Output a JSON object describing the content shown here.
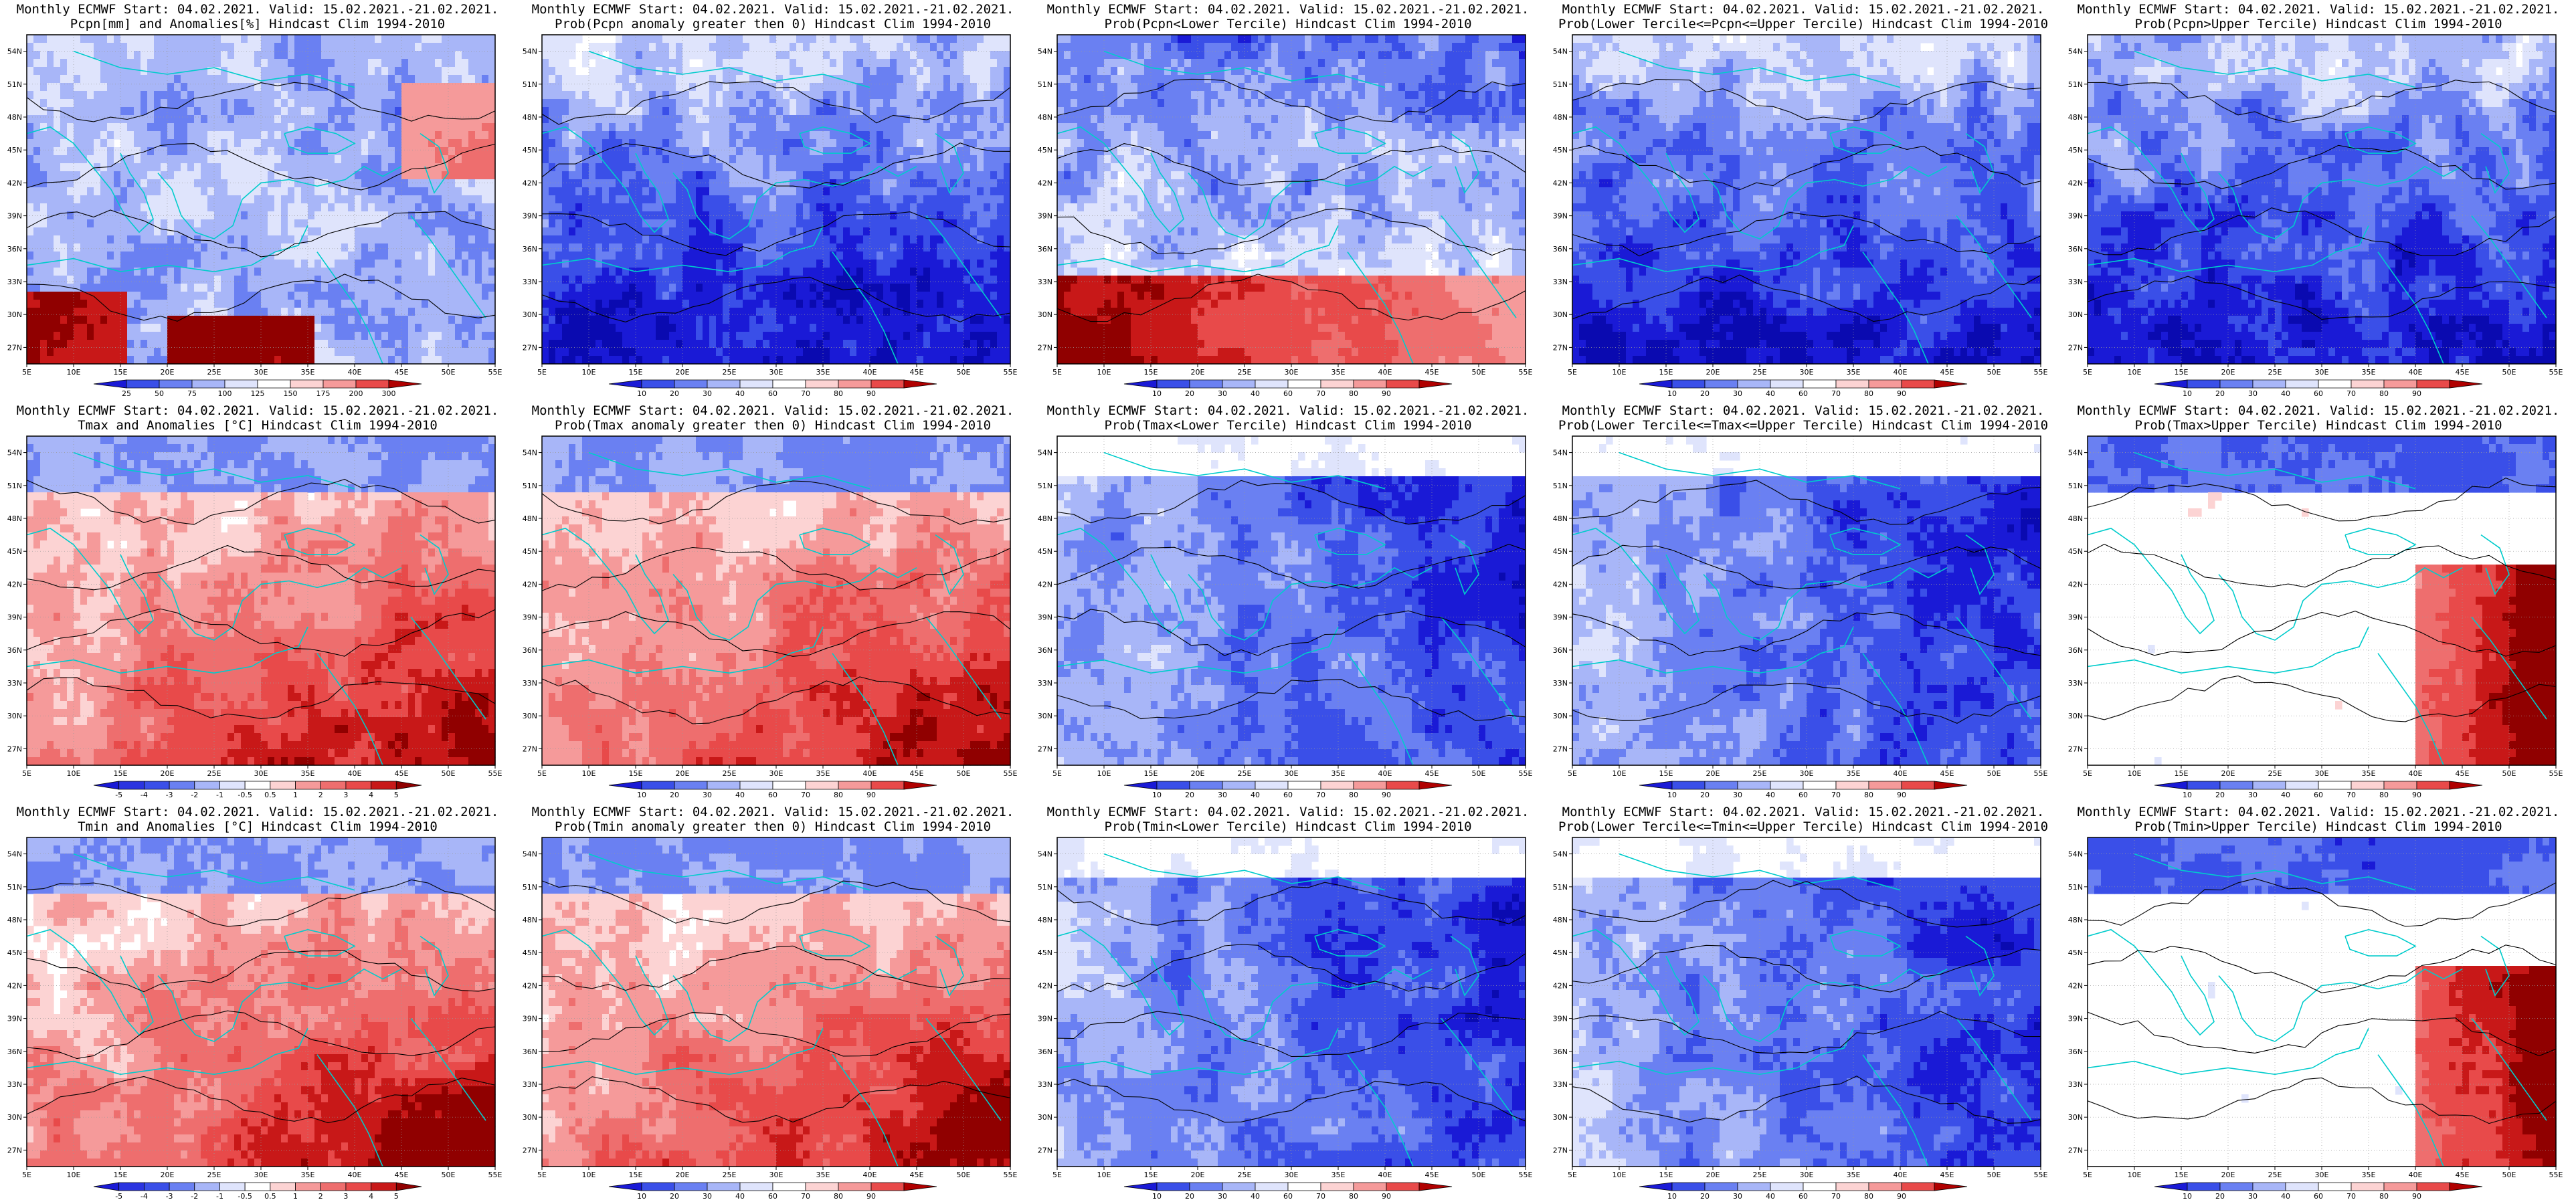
{
  "header_common": "Monthly ECMWF Start: 04.02.2021. Valid: 15.02.2021.-21.02.2021.",
  "lon_labels": [
    "5E",
    "10E",
    "15E",
    "20E",
    "25E",
    "30E",
    "35E",
    "40E",
    "45E",
    "50E",
    "55E"
  ],
  "lat_labels": [
    "27N",
    "30N",
    "33N",
    "36N",
    "39N",
    "42N",
    "45N",
    "48N",
    "51N",
    "54N"
  ],
  "prob_bar": {
    "labels": [
      "10",
      "20",
      "30",
      "40",
      "60",
      "70",
      "80",
      "90"
    ],
    "colors": [
      "#1a1ad6",
      "#3a4fe8",
      "#6a80f2",
      "#a8b6f8",
      "#dfe4fc",
      "#ffffff",
      "#fcd3d3",
      "#f59a9a",
      "#e84a4a",
      "#b00000"
    ]
  },
  "colors": {
    "coast": "#00cccc",
    "contour": "#000000",
    "missing": "#ffffff"
  },
  "panels": [
    {
      "title": "Pcpn[mm] and Anomalies[%] Hindcast Clim 1994-2010",
      "scheme": "precip-anom",
      "bar": {
        "labels": [
          "25",
          "50",
          "75",
          "100",
          "125",
          "150",
          "175",
          "200",
          "300"
        ],
        "colors": [
          "#1a1ad6",
          "#3a4fe8",
          "#6a80f2",
          "#a8b6f8",
          "#dfe4fc",
          "#ffffff",
          "#fcd3d3",
          "#f59a9a",
          "#e84a4a",
          "#b00000"
        ]
      }
    },
    {
      "title": "Prob(Pcpn anomaly greater then 0) Hindcast Clim 1994-2010",
      "scheme": "prob-blue",
      "bar": "prob"
    },
    {
      "title": "Prob(Pcpn<Lower Tercile) Hindcast Clim 1994-2010",
      "scheme": "prob-mixed",
      "bar": "prob"
    },
    {
      "title": "Prob(Lower Tercile<=Pcpn<=Upper Tercile) Hindcast Clim 1994-2010",
      "scheme": "prob-blue",
      "bar": "prob"
    },
    {
      "title": "Prob(Pcpn>Upper Tercile) Hindcast Clim 1994-2010",
      "scheme": "prob-blue",
      "bar": "prob"
    },
    {
      "title": "Tmax and Anomalies [°C] Hindcast Clim 1994-2010",
      "scheme": "temp-warm",
      "bar": {
        "labels": [
          "-5",
          "-4",
          "-3",
          "-2",
          "-1",
          "-0.5",
          "0.5",
          "1",
          "2",
          "3",
          "4",
          "5"
        ],
        "colors": [
          "#1a1ad6",
          "#2b34e0",
          "#3a4fe8",
          "#6a80f2",
          "#a8b6f8",
          "#dfe4fc",
          "#ffffff",
          "#fcd3d3",
          "#f59a9a",
          "#ee6e6e",
          "#e84a4a",
          "#c81818",
          "#900000"
        ]
      }
    },
    {
      "title": "Prob(Tmax anomaly greater then 0) Hindcast Clim 1994-2010",
      "scheme": "temp-warm",
      "bar": "prob"
    },
    {
      "title": "Prob(Tmax<Lower Tercile) Hindcast Clim 1994-2010",
      "scheme": "prob-deepblue",
      "bar": "prob"
    },
    {
      "title": "Prob(Lower Tercile<=Tmax<=Upper Tercile) Hindcast Clim 1994-2010",
      "scheme": "prob-deepblue",
      "bar": "prob"
    },
    {
      "title": "Prob(Tmax>Upper Tercile) Hindcast Clim 1994-2010",
      "scheme": "prob-warmcorner",
      "bar": "prob"
    },
    {
      "title": "Tmin and Anomalies [°C] Hindcast Clim 1994-2010",
      "scheme": "temp-warm",
      "bar": {
        "labels": [
          "-5",
          "-4",
          "-3",
          "-2",
          "-1",
          "-0.5",
          "0.5",
          "1",
          "2",
          "3",
          "4",
          "5"
        ],
        "colors": [
          "#1a1ad6",
          "#2b34e0",
          "#3a4fe8",
          "#6a80f2",
          "#a8b6f8",
          "#dfe4fc",
          "#ffffff",
          "#fcd3d3",
          "#f59a9a",
          "#ee6e6e",
          "#e84a4a",
          "#c81818",
          "#900000"
        ]
      }
    },
    {
      "title": "Prob(Tmin anomaly greater then 0) Hindcast Clim 1994-2010",
      "scheme": "temp-warm",
      "bar": "prob"
    },
    {
      "title": "Prob(Tmin<Lower Tercile) Hindcast Clim 1994-2010",
      "scheme": "prob-deepblue",
      "bar": "prob"
    },
    {
      "title": "Prob(Lower Tercile<=Tmin<=Upper Tercile) Hindcast Clim 1994-2010",
      "scheme": "prob-deepblue",
      "bar": "prob"
    },
    {
      "title": "Prob(Tmin>Upper Tercile) Hindcast Clim 1994-2010",
      "scheme": "prob-warmcorner",
      "bar": "prob"
    }
  ]
}
